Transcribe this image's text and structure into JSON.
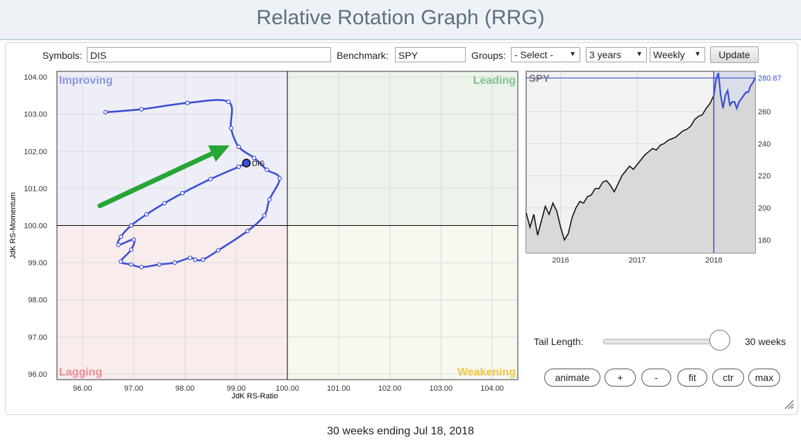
{
  "header": {
    "title": "Relative Rotation Graph (RRG)"
  },
  "controls": {
    "symbols_label": "Symbols:",
    "symbols_value": "DIS",
    "benchmark_label": "Benchmark:",
    "benchmark_value": "SPY",
    "groups_label": "Groups:",
    "groups_value": "- Select -",
    "period_value": "3 years",
    "frequency_value": "Weekly",
    "update_label": "Update"
  },
  "quadrants": {
    "improving": "Improving",
    "leading": "Leading",
    "lagging": "Lagging",
    "weakening": "Weakening"
  },
  "colors": {
    "improving": "#eeeef8",
    "leading": "#ebf3eb",
    "lagging": "#f8ecec",
    "weakening": "#f8f7f0",
    "tail": "#3a4fd6",
    "arrow": "#26a636",
    "improving_text": "#8a95e0",
    "leading_text": "#7fc28a",
    "lagging_text": "#f08e96",
    "weakening_text": "#f0c840"
  },
  "chart_data": [
    {
      "type": "scatter",
      "title": "",
      "xlabel": "JdK RS-Ratio",
      "ylabel": "JdK RS-Momentum",
      "xlim": [
        95.5,
        104.5
      ],
      "ylim": [
        95.85,
        104.15
      ],
      "center": [
        100,
        100
      ],
      "x_ticks": [
        "96.00",
        "97.00",
        "98.00",
        "99.00",
        "100.00",
        "101.00",
        "102.00",
        "103.00",
        "104.00"
      ],
      "y_ticks": [
        "104.00",
        "103.00",
        "102.00",
        "101.00",
        "100.00",
        "99.00",
        "98.00",
        "97.00",
        "96.00"
      ],
      "grid": true,
      "series": [
        {
          "name": "DIS",
          "label": "DIS",
          "tail_points": [
            [
              96.45,
              103.05
            ],
            [
              97.15,
              103.13
            ],
            [
              98.05,
              103.3
            ],
            [
              98.85,
              103.33
            ],
            [
              98.9,
              102.62
            ],
            [
              99.05,
              102.12
            ],
            [
              99.35,
              101.82
            ],
            [
              99.6,
              101.5
            ],
            [
              99.85,
              101.27
            ],
            [
              99.65,
              100.7
            ],
            [
              99.55,
              100.27
            ],
            [
              99.22,
              99.85
            ],
            [
              98.65,
              99.33
            ],
            [
              98.35,
              99.08
            ],
            [
              98.2,
              99.08
            ],
            [
              98.1,
              99.13
            ],
            [
              97.8,
              99.0
            ],
            [
              97.5,
              98.95
            ],
            [
              97.15,
              98.88
            ],
            [
              96.95,
              98.95
            ],
            [
              96.75,
              99.03
            ],
            [
              96.95,
              99.35
            ],
            [
              97.0,
              99.62
            ],
            [
              96.7,
              99.48
            ],
            [
              96.75,
              99.7
            ],
            [
              96.95,
              100.0
            ],
            [
              97.25,
              100.3
            ],
            [
              97.6,
              100.6
            ],
            [
              97.95,
              100.87
            ],
            [
              98.5,
              101.25
            ],
            [
              99.05,
              101.58
            ],
            [
              99.2,
              101.68
            ]
          ],
          "current": [
            99.2,
            101.68
          ]
        }
      ]
    },
    {
      "type": "line",
      "title": "SPY",
      "x_ticks": [
        "2016",
        "2017",
        "2018"
      ],
      "y_ticks": [
        "180",
        "200",
        "220",
        "240",
        "260"
      ],
      "ylim": [
        172,
        285
      ],
      "last_value_label": "280.87",
      "x": [
        2015.55,
        2015.6,
        2015.65,
        2015.7,
        2015.75,
        2015.8,
        2015.85,
        2015.9,
        2015.95,
        2016.0,
        2016.05,
        2016.1,
        2016.15,
        2016.2,
        2016.25,
        2016.3,
        2016.35,
        2016.4,
        2016.45,
        2016.5,
        2016.55,
        2016.6,
        2016.65,
        2016.7,
        2016.75,
        2016.8,
        2016.85,
        2016.9,
        2016.95,
        2017.0,
        2017.05,
        2017.1,
        2017.15,
        2017.2,
        2017.25,
        2017.3,
        2017.35,
        2017.4,
        2017.45,
        2017.5,
        2017.55,
        2017.6,
        2017.65,
        2017.7,
        2017.75,
        2017.8,
        2017.85,
        2017.9,
        2017.95,
        2018.0,
        2018.03,
        2018.06,
        2018.09,
        2018.12,
        2018.15,
        2018.18,
        2018.21,
        2018.24,
        2018.27,
        2018.3,
        2018.33,
        2018.36,
        2018.39,
        2018.42,
        2018.45,
        2018.48,
        2018.51,
        2018.54
      ],
      "values": [
        197,
        188,
        196,
        183,
        192,
        201,
        196,
        203,
        198,
        188,
        180,
        184,
        194,
        200,
        204,
        203,
        207,
        208,
        212,
        212,
        216,
        217,
        214,
        210,
        215,
        220,
        223,
        226,
        224,
        227,
        230,
        233,
        235,
        237,
        236,
        239,
        240,
        242,
        243,
        244,
        246,
        248,
        249,
        251,
        255,
        257,
        258,
        262,
        265,
        270,
        280,
        284,
        270,
        262,
        270,
        273,
        264,
        266,
        266,
        262,
        266,
        268,
        270,
        272,
        272,
        276,
        278,
        281
      ],
      "highlight_from": 2018.0
    }
  ],
  "tail": {
    "label": "Tail Length:",
    "value_label": "30 weeks",
    "value_weeks": 30,
    "max_weeks": 30
  },
  "buttons": {
    "animate": "animate",
    "plus": "+",
    "minus": "-",
    "fit": "fit",
    "ctr": "ctr",
    "max": "max"
  },
  "footer": {
    "caption": "30 weeks ending Jul 18, 2018"
  }
}
